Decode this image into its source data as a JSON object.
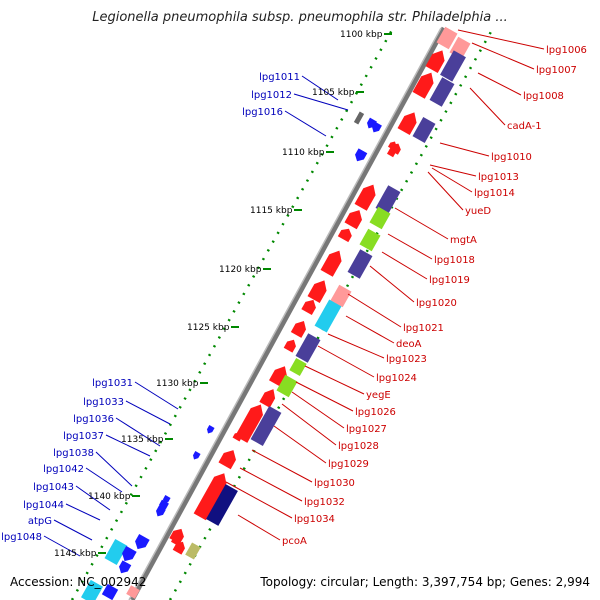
{
  "title": "Legionella pneumophila subsp. pneumophila str. Philadelphia ...",
  "footer": {
    "accession": "Accession: NC_002942",
    "summary": "Topology: circular; Length: 3,397,754 bp; Genes: 2,994"
  },
  "colors": {
    "forward_label": "#cc0000",
    "reverse_label": "#0000bb",
    "backbone": "#888888",
    "tick_dots": "#008800"
  },
  "ruler_labels": [
    "1100 kbp",
    "1105 kbp",
    "1110 kbp",
    "1115 kbp",
    "1120 kbp",
    "1125 kbp",
    "1130 kbp",
    "1135 kbp",
    "1140 kbp",
    "1145 kbp"
  ],
  "forward_genes": [
    "lpg1006",
    "lpg1007",
    "lpg1008",
    "cadA-1",
    "lpg1010",
    "lpg1013",
    "lpg1014",
    "yueD",
    "mgtA",
    "lpg1018",
    "lpg1019",
    "lpg1020",
    "lpg1021",
    "deoA",
    "lpg1023",
    "lpg1024",
    "yegE",
    "lpg1026",
    "lpg1027",
    "lpg1028",
    "lpg1029",
    "lpg1030",
    "lpg1032",
    "lpg1034",
    "pcoA"
  ],
  "reverse_genes": [
    "lpg1011",
    "lpg1012",
    "lpg1016",
    "lpg1031",
    "lpg1033",
    "lpg1036",
    "lpg1037",
    "lpg1038",
    "lpg1042",
    "lpg1043",
    "lpg1044",
    "atpG",
    "lpg1048"
  ]
}
